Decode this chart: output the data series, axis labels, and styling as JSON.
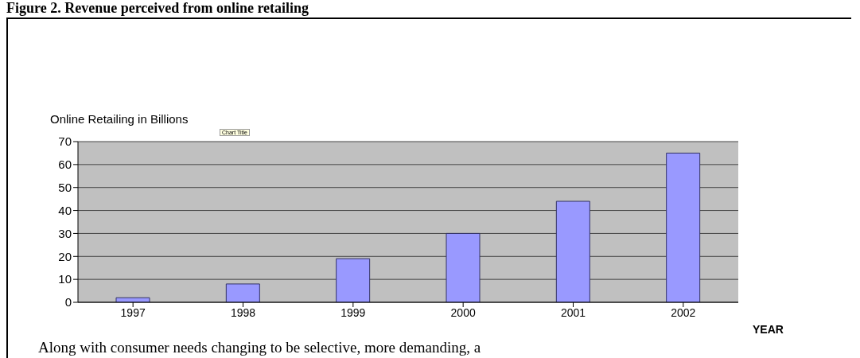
{
  "chart_data": {
    "type": "bar",
    "title": "Online Retailing in Billions",
    "subtitle": "Figure 2. Revenue perceived from online retailing",
    "xlabel": "YEAR",
    "categories": [
      "1997",
      "1998",
      "1999",
      "2000",
      "2001",
      "2002"
    ],
    "values": [
      2,
      8,
      19,
      30,
      44,
      65
    ],
    "color": "#9999ff",
    "ylim": [
      0,
      70
    ],
    "yticks": [
      0,
      10,
      20,
      30,
      40,
      50,
      60,
      70
    ],
    "grid": "y",
    "legend": false,
    "annotations": [
      "Chart Title",
      "Along with consumer needs changing to be selective, more demanding, a"
    ]
  }
}
